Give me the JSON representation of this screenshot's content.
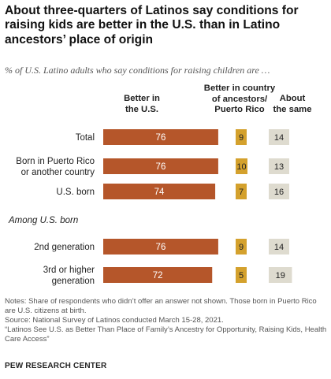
{
  "title": "About three-quarters of Latinos say conditions for raising kids are better in the U.S. than in Latino ancestors’ place of origin",
  "subtitle": "% of U.S. Latino adults who say conditions for raising children are …",
  "chart_data": {
    "type": "bar",
    "columns": [
      {
        "key": "better_us",
        "label_lines": [
          "Better in",
          "the U.S."
        ],
        "color": "#b5562a"
      },
      {
        "key": "better_ancestors",
        "label_lines": [
          "Better in country",
          "of ancestors/",
          "Puerto Rico"
        ],
        "color": "#d4a12d"
      },
      {
        "key": "same",
        "label_lines": [
          "About",
          "the same"
        ],
        "color": "#dedbcf"
      }
    ],
    "section_label": "Among U.S. born",
    "rows": [
      {
        "label_lines": [
          "Total"
        ],
        "better_us": 76,
        "better_ancestors": 9,
        "same": 14
      },
      {
        "label_lines": [
          "Born in Puerto Rico",
          "or another country"
        ],
        "better_us": 76,
        "better_ancestors": 10,
        "same": 13
      },
      {
        "label_lines": [
          "U.S. born"
        ],
        "better_us": 74,
        "better_ancestors": 7,
        "same": 16
      },
      {
        "label_lines": [
          "2nd generation"
        ],
        "better_us": 76,
        "better_ancestors": 9,
        "same": 14
      },
      {
        "label_lines": [
          "3rd or higher",
          "generation"
        ],
        "better_us": 72,
        "better_ancestors": 5,
        "same": 19
      }
    ]
  },
  "notes": [
    "Notes: Share of respondents who didn’t offer an answer not shown. Those born in Puerto Rico are U.S. citizens at birth.",
    "Source: National Survey of Latinos conducted March 15-28, 2021.",
    "“Latinos See U.S. as Better Than Place of Family’s Ancestry for Opportunity, Raising Kids, Health Care Access”"
  ],
  "source_org": "PEW RESEARCH CENTER"
}
